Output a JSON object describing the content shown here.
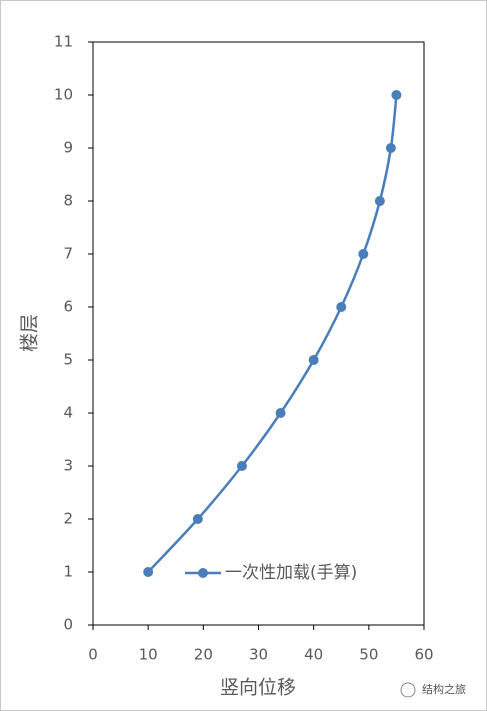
{
  "chart_data": {
    "type": "scatter",
    "smooth": true,
    "x_label": "竖向位移",
    "y_label": "楼层",
    "series": [
      {
        "name": "一次性加载(手算)",
        "color": "#4a7ebb",
        "x": [
          10,
          19,
          27,
          34,
          40,
          45,
          49,
          52,
          54,
          55
        ],
        "values": [
          1,
          2,
          3,
          4,
          5,
          6,
          7,
          8,
          9,
          10
        ]
      }
    ],
    "xlim": [
      0,
      60
    ],
    "xticks": [
      0,
      10,
      20,
      30,
      40,
      50,
      60
    ],
    "ylim": [
      0,
      11
    ],
    "yticks": [
      0,
      1,
      2,
      3,
      4,
      5,
      6,
      7,
      8,
      9,
      10,
      11
    ],
    "legend": "inside-bottom-right",
    "watermark": "结构之旅"
  }
}
